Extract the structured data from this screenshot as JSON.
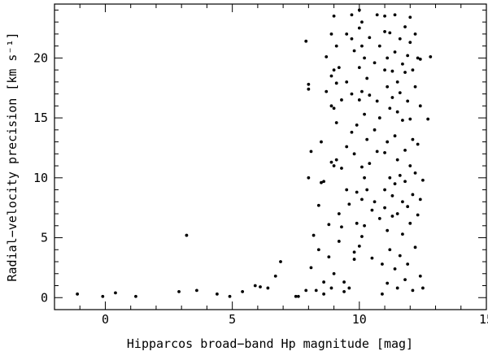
{
  "chart_data": {
    "type": "scatter",
    "title": "",
    "xlabel": "Hipparcos broad−band Hp magnitude [mag]",
    "ylabel": "Radial−velocity precision [km s⁻¹]",
    "xlim": [
      -2,
      15
    ],
    "ylim": [
      -1,
      24.5
    ],
    "xticks": [
      0,
      5,
      10,
      15
    ],
    "yticks": [
      0,
      5,
      10,
      15,
      20
    ],
    "xtick_labels": [
      "0",
      "5",
      "10",
      "15"
    ],
    "ytick_labels": [
      "0",
      "5",
      "10",
      "15",
      "20"
    ],
    "grid": false,
    "legend": "none",
    "marker_color": "#000000",
    "series": [
      {
        "points": [
          [
            -1.1,
            0.3
          ],
          [
            -0.1,
            0.1
          ],
          [
            0.4,
            0.4
          ],
          [
            1.2,
            0.1
          ],
          [
            2.9,
            0.5
          ],
          [
            3.2,
            5.2
          ],
          [
            3.6,
            0.6
          ],
          [
            4.4,
            0.3
          ],
          [
            4.9,
            0.1
          ],
          [
            5.4,
            0.5
          ],
          [
            5.9,
            1.0
          ],
          [
            6.1,
            0.9
          ],
          [
            6.4,
            0.8
          ],
          [
            6.7,
            1.8
          ],
          [
            6.9,
            3.0
          ],
          [
            7.5,
            0.1
          ],
          [
            7.6,
            0.1
          ],
          [
            7.9,
            0.6
          ],
          [
            7.9,
            21.4
          ],
          [
            8.0,
            17.4
          ],
          [
            8.0,
            17.8
          ],
          [
            8.1,
            12.2
          ],
          [
            8.0,
            10.0
          ],
          [
            8.1,
            2.5
          ],
          [
            8.2,
            5.2
          ],
          [
            8.3,
            0.6
          ],
          [
            8.4,
            4.0
          ],
          [
            8.4,
            7.7
          ],
          [
            8.5,
            9.6
          ],
          [
            8.5,
            13.0
          ],
          [
            8.6,
            9.7
          ],
          [
            8.6,
            1.3
          ],
          [
            8.6,
            0.3
          ],
          [
            8.7,
            20.1
          ],
          [
            8.7,
            17.2
          ],
          [
            8.8,
            6.1
          ],
          [
            8.8,
            3.4
          ],
          [
            8.9,
            22.0
          ],
          [
            8.9,
            18.5
          ],
          [
            8.9,
            16.0
          ],
          [
            8.9,
            11.3
          ],
          [
            8.9,
            0.8
          ],
          [
            9.0,
            23.5
          ],
          [
            9.0,
            19.0
          ],
          [
            9.0,
            15.8
          ],
          [
            9.0,
            11.0
          ],
          [
            9.0,
            2.0
          ],
          [
            9.1,
            21.0
          ],
          [
            9.1,
            17.9
          ],
          [
            9.1,
            14.6
          ],
          [
            9.1,
            11.5
          ],
          [
            9.2,
            19.2
          ],
          [
            9.2,
            7.0
          ],
          [
            9.2,
            4.7
          ],
          [
            9.3,
            16.5
          ],
          [
            9.3,
            10.8
          ],
          [
            9.3,
            5.9
          ],
          [
            9.4,
            1.3
          ],
          [
            9.4,
            0.5
          ],
          [
            9.5,
            22.0
          ],
          [
            9.5,
            18.0
          ],
          [
            9.5,
            12.6
          ],
          [
            9.5,
            9.0
          ],
          [
            9.6,
            7.8
          ],
          [
            9.6,
            0.8
          ],
          [
            9.7,
            23.6
          ],
          [
            9.7,
            21.6
          ],
          [
            9.7,
            17.0
          ],
          [
            9.7,
            13.8
          ],
          [
            9.8,
            20.6
          ],
          [
            9.8,
            12.0
          ],
          [
            9.8,
            3.2
          ],
          [
            9.8,
            3.8
          ],
          [
            9.9,
            14.4
          ],
          [
            9.9,
            8.8
          ],
          [
            9.9,
            6.2
          ],
          [
            10.0,
            24.0
          ],
          [
            10.0,
            22.5
          ],
          [
            10.0,
            19.2
          ],
          [
            10.0,
            16.5
          ],
          [
            10.0,
            4.3
          ],
          [
            10.1,
            23.0
          ],
          [
            10.1,
            21.0
          ],
          [
            10.1,
            17.2
          ],
          [
            10.1,
            10.9
          ],
          [
            10.1,
            8.2
          ],
          [
            10.1,
            5.1
          ],
          [
            10.2,
            20.0
          ],
          [
            10.2,
            15.3
          ],
          [
            10.2,
            10.0
          ],
          [
            10.2,
            6.0
          ],
          [
            10.3,
            18.3
          ],
          [
            10.3,
            13.2
          ],
          [
            10.3,
            9.0
          ],
          [
            10.4,
            21.7
          ],
          [
            10.4,
            16.9
          ],
          [
            10.4,
            11.2
          ],
          [
            10.5,
            7.3
          ],
          [
            10.5,
            3.3
          ],
          [
            10.6,
            19.6
          ],
          [
            10.6,
            14.0
          ],
          [
            10.6,
            8.0
          ],
          [
            10.7,
            23.6
          ],
          [
            10.7,
            16.4
          ],
          [
            10.7,
            12.2
          ],
          [
            10.8,
            21.0
          ],
          [
            10.8,
            15.0
          ],
          [
            10.8,
            6.6
          ],
          [
            10.9,
            2.8
          ],
          [
            10.9,
            0.3
          ],
          [
            11.0,
            23.5
          ],
          [
            11.0,
            22.2
          ],
          [
            11.0,
            19.0
          ],
          [
            11.0,
            12.1
          ],
          [
            11.0,
            9.0
          ],
          [
            11.0,
            7.5
          ],
          [
            11.1,
            20.0
          ],
          [
            11.1,
            17.6
          ],
          [
            11.1,
            13.0
          ],
          [
            11.1,
            5.6
          ],
          [
            11.1,
            1.2
          ],
          [
            11.2,
            22.1
          ],
          [
            11.2,
            15.8
          ],
          [
            11.2,
            10.0
          ],
          [
            11.2,
            4.0
          ],
          [
            11.3,
            18.9
          ],
          [
            11.3,
            16.7
          ],
          [
            11.3,
            8.5
          ],
          [
            11.3,
            6.8
          ],
          [
            11.4,
            23.6
          ],
          [
            11.4,
            20.5
          ],
          [
            11.4,
            13.5
          ],
          [
            11.4,
            9.5
          ],
          [
            11.4,
            2.4
          ],
          [
            11.5,
            18.0
          ],
          [
            11.5,
            15.5
          ],
          [
            11.5,
            11.5
          ],
          [
            11.5,
            7.0
          ],
          [
            11.5,
            0.8
          ],
          [
            11.6,
            21.6
          ],
          [
            11.6,
            17.1
          ],
          [
            11.6,
            10.2
          ],
          [
            11.6,
            3.5
          ],
          [
            11.7,
            19.5
          ],
          [
            11.7,
            14.8
          ],
          [
            11.7,
            8.0
          ],
          [
            11.7,
            5.3
          ],
          [
            11.8,
            22.6
          ],
          [
            11.8,
            18.8
          ],
          [
            11.8,
            12.3
          ],
          [
            11.8,
            9.7
          ],
          [
            11.8,
            1.5
          ],
          [
            11.9,
            20.2
          ],
          [
            11.9,
            16.4
          ],
          [
            11.9,
            7.6
          ],
          [
            11.9,
            2.8
          ],
          [
            12.0,
            23.4
          ],
          [
            12.0,
            21.3
          ],
          [
            12.0,
            14.9
          ],
          [
            12.0,
            11.0
          ],
          [
            12.0,
            6.2
          ],
          [
            12.1,
            19.0
          ],
          [
            12.1,
            13.2
          ],
          [
            12.1,
            8.6
          ],
          [
            12.1,
            0.6
          ],
          [
            12.2,
            22.0
          ],
          [
            12.2,
            17.6
          ],
          [
            12.2,
            10.4
          ],
          [
            12.2,
            4.2
          ],
          [
            12.3,
            20.0
          ],
          [
            12.3,
            12.8
          ],
          [
            12.3,
            6.9
          ],
          [
            12.4,
            19.9
          ],
          [
            12.4,
            16.0
          ],
          [
            12.4,
            8.2
          ],
          [
            12.4,
            1.8
          ],
          [
            12.5,
            9.8
          ],
          [
            12.5,
            0.8
          ],
          [
            12.8,
            20.1
          ],
          [
            12.7,
            14.9
          ]
        ]
      }
    ]
  }
}
